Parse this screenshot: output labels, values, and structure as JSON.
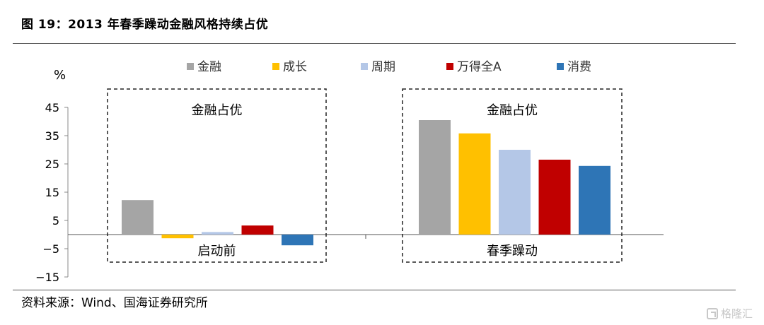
{
  "figure": {
    "title": "图 19：2013 年春季躁动金融风格持续占优",
    "source": "资料来源：Wind、国海证券研究所",
    "watermark": "格隆汇"
  },
  "chart_data": {
    "type": "bar",
    "y_unit": "%",
    "ylim": [
      -15,
      45
    ],
    "yticks": [
      -15,
      -5,
      5,
      15,
      25,
      35,
      45
    ],
    "grid": false,
    "legend_position": "top",
    "categories": [
      "启动前",
      "春季躁动"
    ],
    "series": [
      {
        "name": "金融",
        "color": "#a5a5a5",
        "values": [
          12.2,
          40.5
        ]
      },
      {
        "name": "成长",
        "color": "#ffc000",
        "values": [
          -1.3,
          35.8
        ]
      },
      {
        "name": "周期",
        "color": "#b4c7e7",
        "values": [
          0.9,
          30.0
        ]
      },
      {
        "name": "万得全A",
        "color": "#c00000",
        "values": [
          3.2,
          26.5
        ]
      },
      {
        "name": "消费",
        "color": "#2e75b6",
        "values": [
          -3.8,
          24.3
        ]
      }
    ],
    "annotations": [
      "金融占优",
      "金融占优"
    ]
  }
}
